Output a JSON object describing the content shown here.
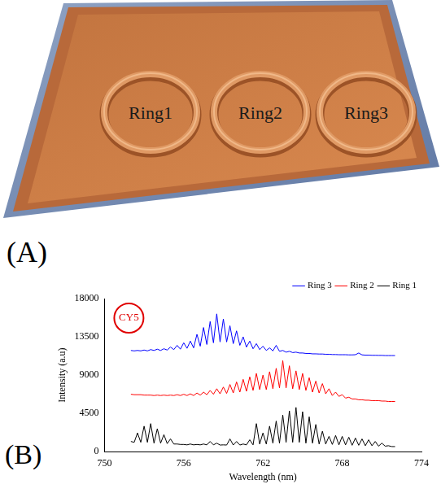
{
  "panel_labels": [
    "(A)",
    "(B)"
  ],
  "diagram": {
    "ring_labels": [
      "Ring1",
      "Ring2",
      "Ring3"
    ]
  },
  "chart_data": {
    "type": "line",
    "x_label": "Wavelength (nm)",
    "y_label": "Intensity (a.u)",
    "annotations": [
      "CY5"
    ],
    "xlim": [
      750,
      774
    ],
    "xticks": [
      750,
      756,
      762,
      768,
      774
    ],
    "ylim": [
      0,
      18000
    ],
    "yticks": [
      0,
      4500,
      9000,
      13500,
      18000
    ],
    "grid": false,
    "legend": "upper right",
    "x": [
      752,
      752.25,
      752.5,
      752.75,
      753,
      753.25,
      753.5,
      753.75,
      754,
      754.25,
      754.5,
      754.75,
      755,
      755.25,
      755.5,
      755.75,
      756,
      756.25,
      756.5,
      756.75,
      757,
      757.25,
      757.5,
      757.75,
      758,
      758.25,
      758.5,
      758.75,
      759,
      759.25,
      759.5,
      759.75,
      760,
      760.25,
      760.5,
      760.75,
      761,
      761.25,
      761.5,
      761.75,
      762,
      762.25,
      762.5,
      762.75,
      763,
      763.25,
      763.5,
      763.75,
      764,
      764.25,
      764.5,
      764.75,
      765,
      765.25,
      765.5,
      765.75,
      766,
      766.25,
      766.5,
      766.75,
      767,
      767.25,
      767.5,
      767.75,
      768,
      768.25,
      768.5,
      768.75,
      769,
      769.25,
      769.5,
      769.75,
      770,
      770.25,
      770.5,
      770.75,
      771,
      771.25,
      771.5,
      771.75,
      772
    ],
    "series": [
      {
        "name": "Ring 3",
        "color": "#0000ff",
        "values": [
          11900,
          11850,
          11900,
          11850,
          11950,
          11850,
          12000,
          11900,
          12050,
          11900,
          12100,
          11950,
          12300,
          12000,
          12500,
          12050,
          12800,
          12150,
          13000,
          12200,
          13800,
          12400,
          14600,
          12600,
          15300,
          12800,
          16200,
          12900,
          15600,
          12900,
          14800,
          12700,
          14200,
          12500,
          13500,
          12300,
          13000,
          12100,
          12700,
          12000,
          12400,
          11900,
          12200,
          11850,
          12500,
          11800,
          11900,
          11700,
          11800,
          11650,
          11700,
          11600,
          11600,
          11550,
          11550,
          11500,
          11500,
          11480,
          11480,
          11450,
          11450,
          11420,
          11420,
          11400,
          11400,
          11400,
          11380,
          11380,
          11400,
          11600,
          11380,
          11350,
          11350,
          11330,
          11330,
          11320,
          11320,
          11300,
          11300,
          11300,
          11300
        ]
      },
      {
        "name": "Ring 2",
        "color": "#ff0000",
        "values": [
          6750,
          6700,
          6700,
          6700,
          6650,
          6650,
          6650,
          6600,
          6650,
          6600,
          6650,
          6600,
          6650,
          6600,
          6700,
          6600,
          6750,
          6600,
          6800,
          6600,
          6900,
          6650,
          7000,
          6700,
          7200,
          6750,
          7400,
          6800,
          7600,
          6850,
          7900,
          6900,
          8200,
          7000,
          8500,
          7100,
          8800,
          7200,
          9200,
          7300,
          9000,
          7300,
          9400,
          7400,
          9800,
          7500,
          10700,
          7500,
          10100,
          7400,
          9500,
          7300,
          9200,
          7200,
          8700,
          7000,
          8300,
          6900,
          8000,
          6800,
          7400,
          6600,
          7000,
          6500,
          6700,
          6300,
          6400,
          6200,
          6200,
          6100,
          6100,
          6050,
          6050,
          6000,
          6000,
          6000,
          5950,
          5950,
          5900,
          5900,
          5900
        ]
      },
      {
        "name": "Ring 1",
        "color": "#000000",
        "values": [
          1200,
          1100,
          2200,
          1100,
          3000,
          1100,
          3300,
          1000,
          2700,
          1000,
          2000,
          950,
          1500,
          900,
          900,
          850,
          850,
          800,
          900,
          800,
          850,
          800,
          900,
          800,
          1200,
          800,
          1000,
          780,
          800,
          780,
          1500,
          780,
          1200,
          780,
          900,
          800,
          1400,
          800,
          3300,
          900,
          2200,
          900,
          3000,
          1000,
          3600,
          1000,
          4300,
          1100,
          4800,
          1100,
          5200,
          1100,
          4700,
          1000,
          4100,
          1000,
          3200,
          900,
          2400,
          900,
          1800,
          850,
          1900,
          800,
          1800,
          800,
          1700,
          750,
          1600,
          750,
          1500,
          700,
          1400,
          700,
          1200,
          650,
          1000,
          650,
          700,
          600,
          600
        ]
      }
    ]
  }
}
